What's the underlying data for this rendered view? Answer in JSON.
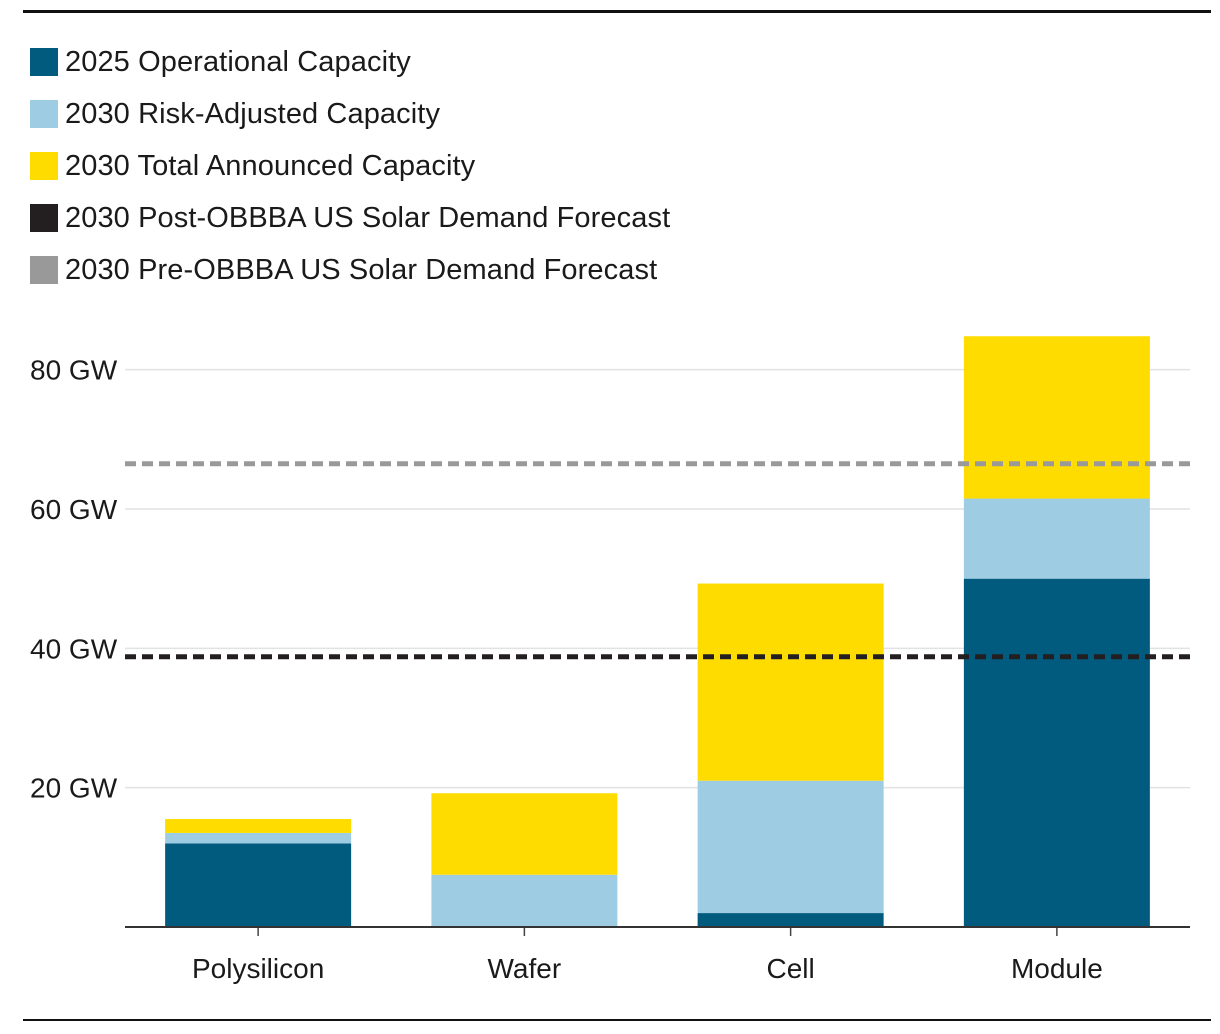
{
  "chart_data": {
    "type": "bar",
    "stacked": true,
    "title": "",
    "xlabel": "",
    "ylabel": "",
    "categories": [
      "Polysilicon",
      "Wafer",
      "Cell",
      "Module"
    ],
    "series": [
      {
        "name": "2025 Operational Capacity",
        "color": "#005b7f",
        "values": [
          12,
          0,
          2,
          50
        ]
      },
      {
        "name": "2030 Risk-Adjusted Capacity",
        "color": "#9ecde3",
        "values": [
          1.5,
          7.5,
          19,
          11.5
        ]
      },
      {
        "name": "2030 Total Announced Capacity",
        "color": "#ffdc00",
        "values": [
          2,
          11.7,
          28.3,
          23.3
        ]
      }
    ],
    "reference_lines": [
      {
        "name": "2030 Post-OBBBA US Solar Demand Forecast",
        "color": "#231f20",
        "value": 38.8,
        "style": "dashed"
      },
      {
        "name": "2030 Pre-OBBBA US Solar Demand Forecast",
        "color": "#999999",
        "value": 66.5,
        "style": "dashed"
      }
    ],
    "ylim": [
      0,
      90
    ],
    "yticks": [
      20,
      40,
      60,
      80
    ],
    "ytick_labels": [
      "20 GW",
      "40 GW",
      "60 GW",
      "80 GW"
    ],
    "grid": true,
    "legend_position": "top-left"
  }
}
